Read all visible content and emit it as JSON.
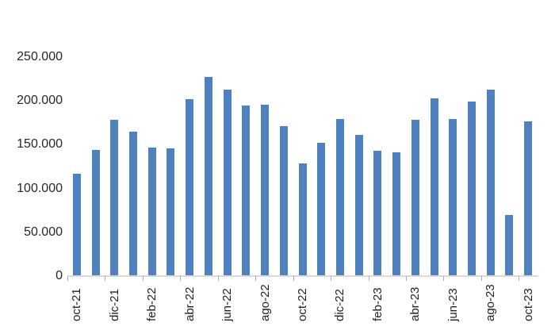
{
  "chart_data": {
    "type": "bar",
    "title": "",
    "xlabel": "",
    "ylabel": "",
    "grid": "off",
    "legend": "none",
    "bar_color": "#4E81BD",
    "axis_line_color": "#D9D9D9",
    "tick_color": "#ABABAB",
    "text_color": "#262626",
    "ylim": [
      0,
      250000
    ],
    "x_label_every": 2,
    "categories": [
      "oct-21",
      "nov-21",
      "dic-21",
      "ene-22",
      "feb-22",
      "mar-22",
      "abr-22",
      "may-22",
      "jun-22",
      "jul-22",
      "ago-22",
      "sep-22",
      "oct-22",
      "nov-22",
      "dic-22",
      "ene-23",
      "feb-23",
      "mar-23",
      "abr-23",
      "may-23",
      "jun-23",
      "jul-23",
      "ago-23",
      "sep-23",
      "oct-23"
    ],
    "values": [
      117000,
      144000,
      178000,
      165000,
      147000,
      146000,
      202000,
      227000,
      213000,
      195000,
      196000,
      171000,
      129000,
      152000,
      179000,
      161000,
      143000,
      141000,
      178000,
      203000,
      179000,
      199000,
      213000,
      70000,
      177000
    ],
    "x_tick_labels": [
      "oct-21",
      "dic-21",
      "feb-22",
      "abr-22",
      "jun-22",
      "ago-22",
      "oct-22",
      "dic-22",
      "feb-23",
      "abr-23",
      "jun-23",
      "ago-23",
      "oct-23"
    ],
    "y_ticks": [
      {
        "value": 0,
        "label": "0"
      },
      {
        "value": 50000,
        "label": "50.000"
      },
      {
        "value": 100000,
        "label": "100.000"
      },
      {
        "value": 150000,
        "label": "150.000"
      },
      {
        "value": 200000,
        "label": "200.000"
      },
      {
        "value": 250000,
        "label": "250.000"
      }
    ]
  }
}
